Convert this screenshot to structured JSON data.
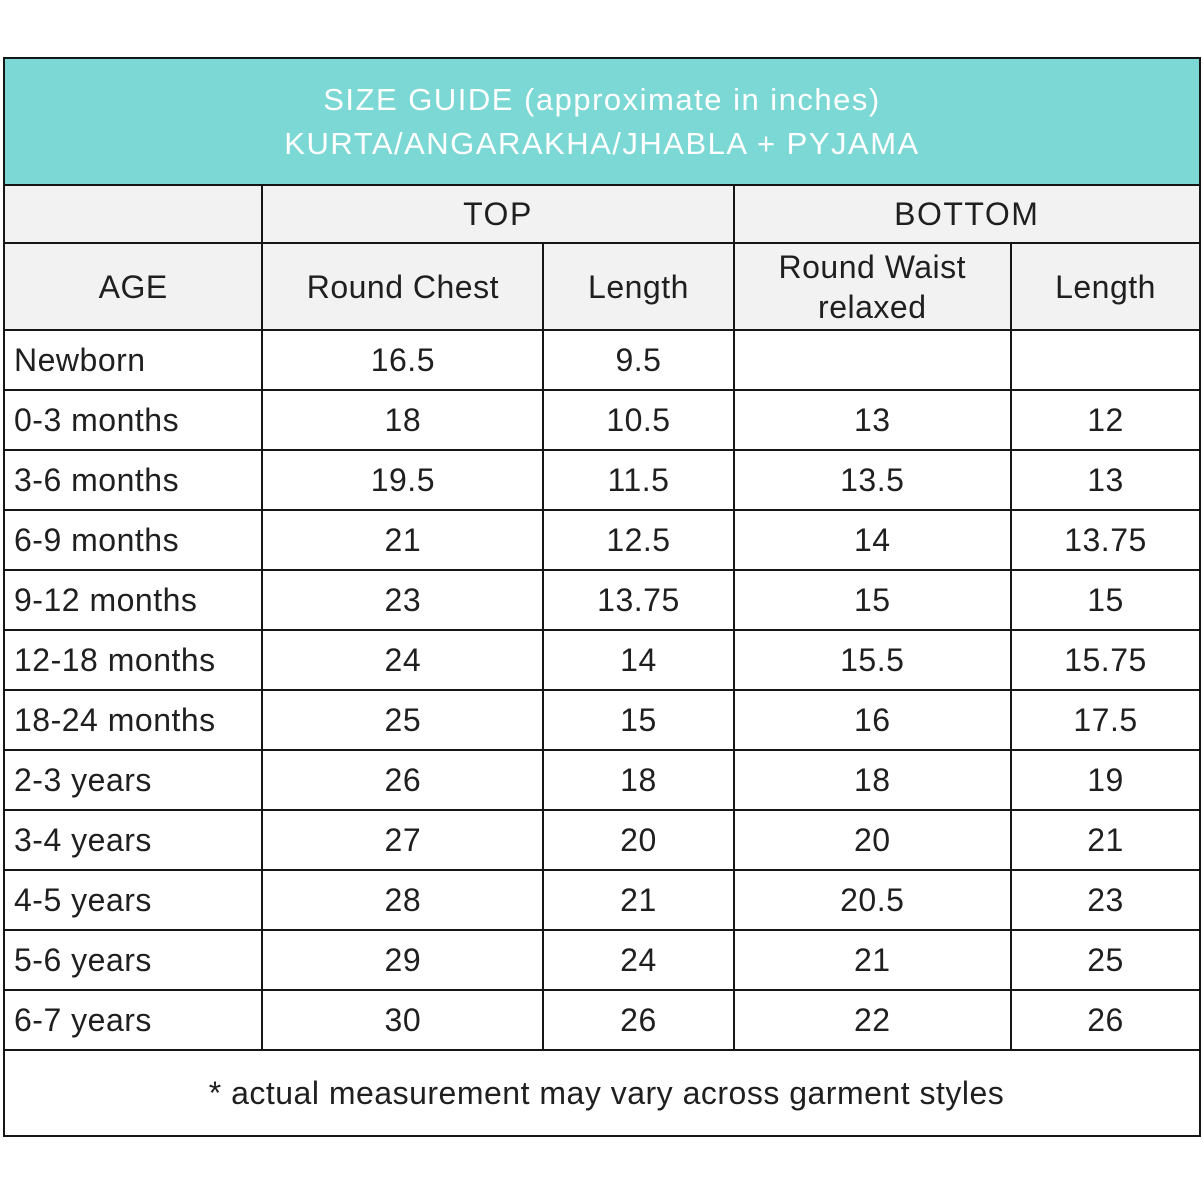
{
  "colors": {
    "banner_bg": "#7bd8d4",
    "banner_text": "#ffffff",
    "header_bg": "#f2f2f2",
    "border": "#161616",
    "text": "#1f1f1f"
  },
  "chart_data": {
    "type": "table",
    "title": "SIZE GUIDE (approximate in inches)",
    "subtitle": "KURTA/ANGARAKHA/JHABLA + PYJAMA",
    "column_groups": [
      {
        "label": "",
        "span": 1
      },
      {
        "label": "TOP",
        "span": 2
      },
      {
        "label": "BOTTOM",
        "span": 2
      }
    ],
    "columns": [
      "AGE",
      "Round Chest",
      "Length",
      "Round Waist relaxed",
      "Length"
    ],
    "rows": [
      [
        "Newborn",
        "16.5",
        "9.5",
        "",
        ""
      ],
      [
        "0-3 months",
        "18",
        "10.5",
        "13",
        "12"
      ],
      [
        "3-6 months",
        "19.5",
        "11.5",
        "13.5",
        "13"
      ],
      [
        "6-9 months",
        "21",
        "12.5",
        "14",
        "13.75"
      ],
      [
        "9-12 months",
        "23",
        "13.75",
        "15",
        "15"
      ],
      [
        "12-18 months",
        "24",
        "14",
        "15.5",
        "15.75"
      ],
      [
        "18-24 months",
        "25",
        "15",
        "16",
        "17.5"
      ],
      [
        "2-3 years",
        "26",
        "18",
        "18",
        "19"
      ],
      [
        "3-4 years",
        "27",
        "20",
        "20",
        "21"
      ],
      [
        "4-5 years",
        "28",
        "21",
        "20.5",
        "23"
      ],
      [
        "5-6 years",
        "29",
        "24",
        "21",
        "25"
      ],
      [
        "6-7 years",
        "30",
        "26",
        "22",
        "26"
      ]
    ],
    "footnote": "* actual measurement may vary across garment styles"
  }
}
